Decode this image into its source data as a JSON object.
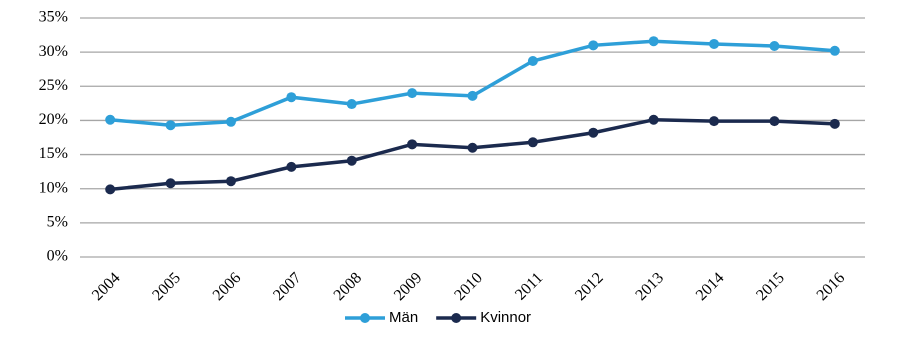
{
  "chart_data": {
    "type": "line",
    "categories": [
      "2004",
      "2005",
      "2006",
      "2007",
      "2008",
      "2009",
      "2010",
      "2011",
      "2012",
      "2013",
      "2014",
      "2015",
      "2016"
    ],
    "series": [
      {
        "name": "Män",
        "color": "#2e9fd8",
        "values": [
          20.1,
          19.3,
          19.8,
          23.4,
          22.4,
          24.0,
          23.6,
          28.7,
          31.0,
          31.6,
          31.2,
          30.9,
          30.2
        ]
      },
      {
        "name": "Kvinnor",
        "color": "#1b2a4e",
        "values": [
          9.9,
          10.8,
          11.1,
          13.2,
          14.1,
          16.5,
          16.0,
          16.8,
          18.2,
          20.1,
          19.9,
          19.9,
          19.5
        ]
      }
    ],
    "ylim": [
      0,
      35
    ],
    "yticks": [
      {
        "value": 0,
        "label": "0%"
      },
      {
        "value": 5,
        "label": "5%"
      },
      {
        "value": 10,
        "label": "10%"
      },
      {
        "value": 15,
        "label": "15%"
      },
      {
        "value": 20,
        "label": "20%"
      },
      {
        "value": 25,
        "label": "25%"
      },
      {
        "value": 30,
        "label": "30%"
      },
      {
        "value": 35,
        "label": "35%"
      }
    ],
    "grid": true,
    "legend": "bottom"
  }
}
